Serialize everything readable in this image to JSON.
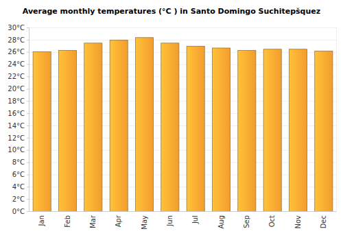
{
  "chart_data": {
    "type": "bar",
    "title": "Average monthly temperatures (°C ) in Santo Domingo Suchitepšquez",
    "categories": [
      "Jan",
      "Feb",
      "Mar",
      "Apr",
      "May",
      "Jun",
      "Jul",
      "Aug",
      "Sep",
      "Oct",
      "Nov",
      "Dec"
    ],
    "values": [
      26.1,
      26.3,
      27.5,
      28.0,
      28.4,
      27.5,
      27.0,
      26.7,
      26.3,
      26.5,
      26.5,
      26.2
    ],
    "color": "#ffa530",
    "ylim": [
      0,
      30
    ],
    "yticks": [
      {
        "value": 0,
        "label": "0°C"
      },
      {
        "value": 2,
        "label": "2°C"
      },
      {
        "value": 4,
        "label": "4°C"
      },
      {
        "value": 6,
        "label": "6°C"
      },
      {
        "value": 8,
        "label": "8°C"
      },
      {
        "value": 10,
        "label": "10°C"
      },
      {
        "value": 12,
        "label": "12°C"
      },
      {
        "value": 14,
        "label": "14°C"
      },
      {
        "value": 16,
        "label": "16°C"
      },
      {
        "value": 18,
        "label": "18°C"
      },
      {
        "value": 20,
        "label": "20°C"
      },
      {
        "value": 22,
        "label": "22°C"
      },
      {
        "value": 24,
        "label": "24°C"
      },
      {
        "value": 26,
        "label": "26°C"
      },
      {
        "value": 28,
        "label": "28°C"
      },
      {
        "value": 30,
        "label": "30°C"
      }
    ],
    "grid": true
  }
}
